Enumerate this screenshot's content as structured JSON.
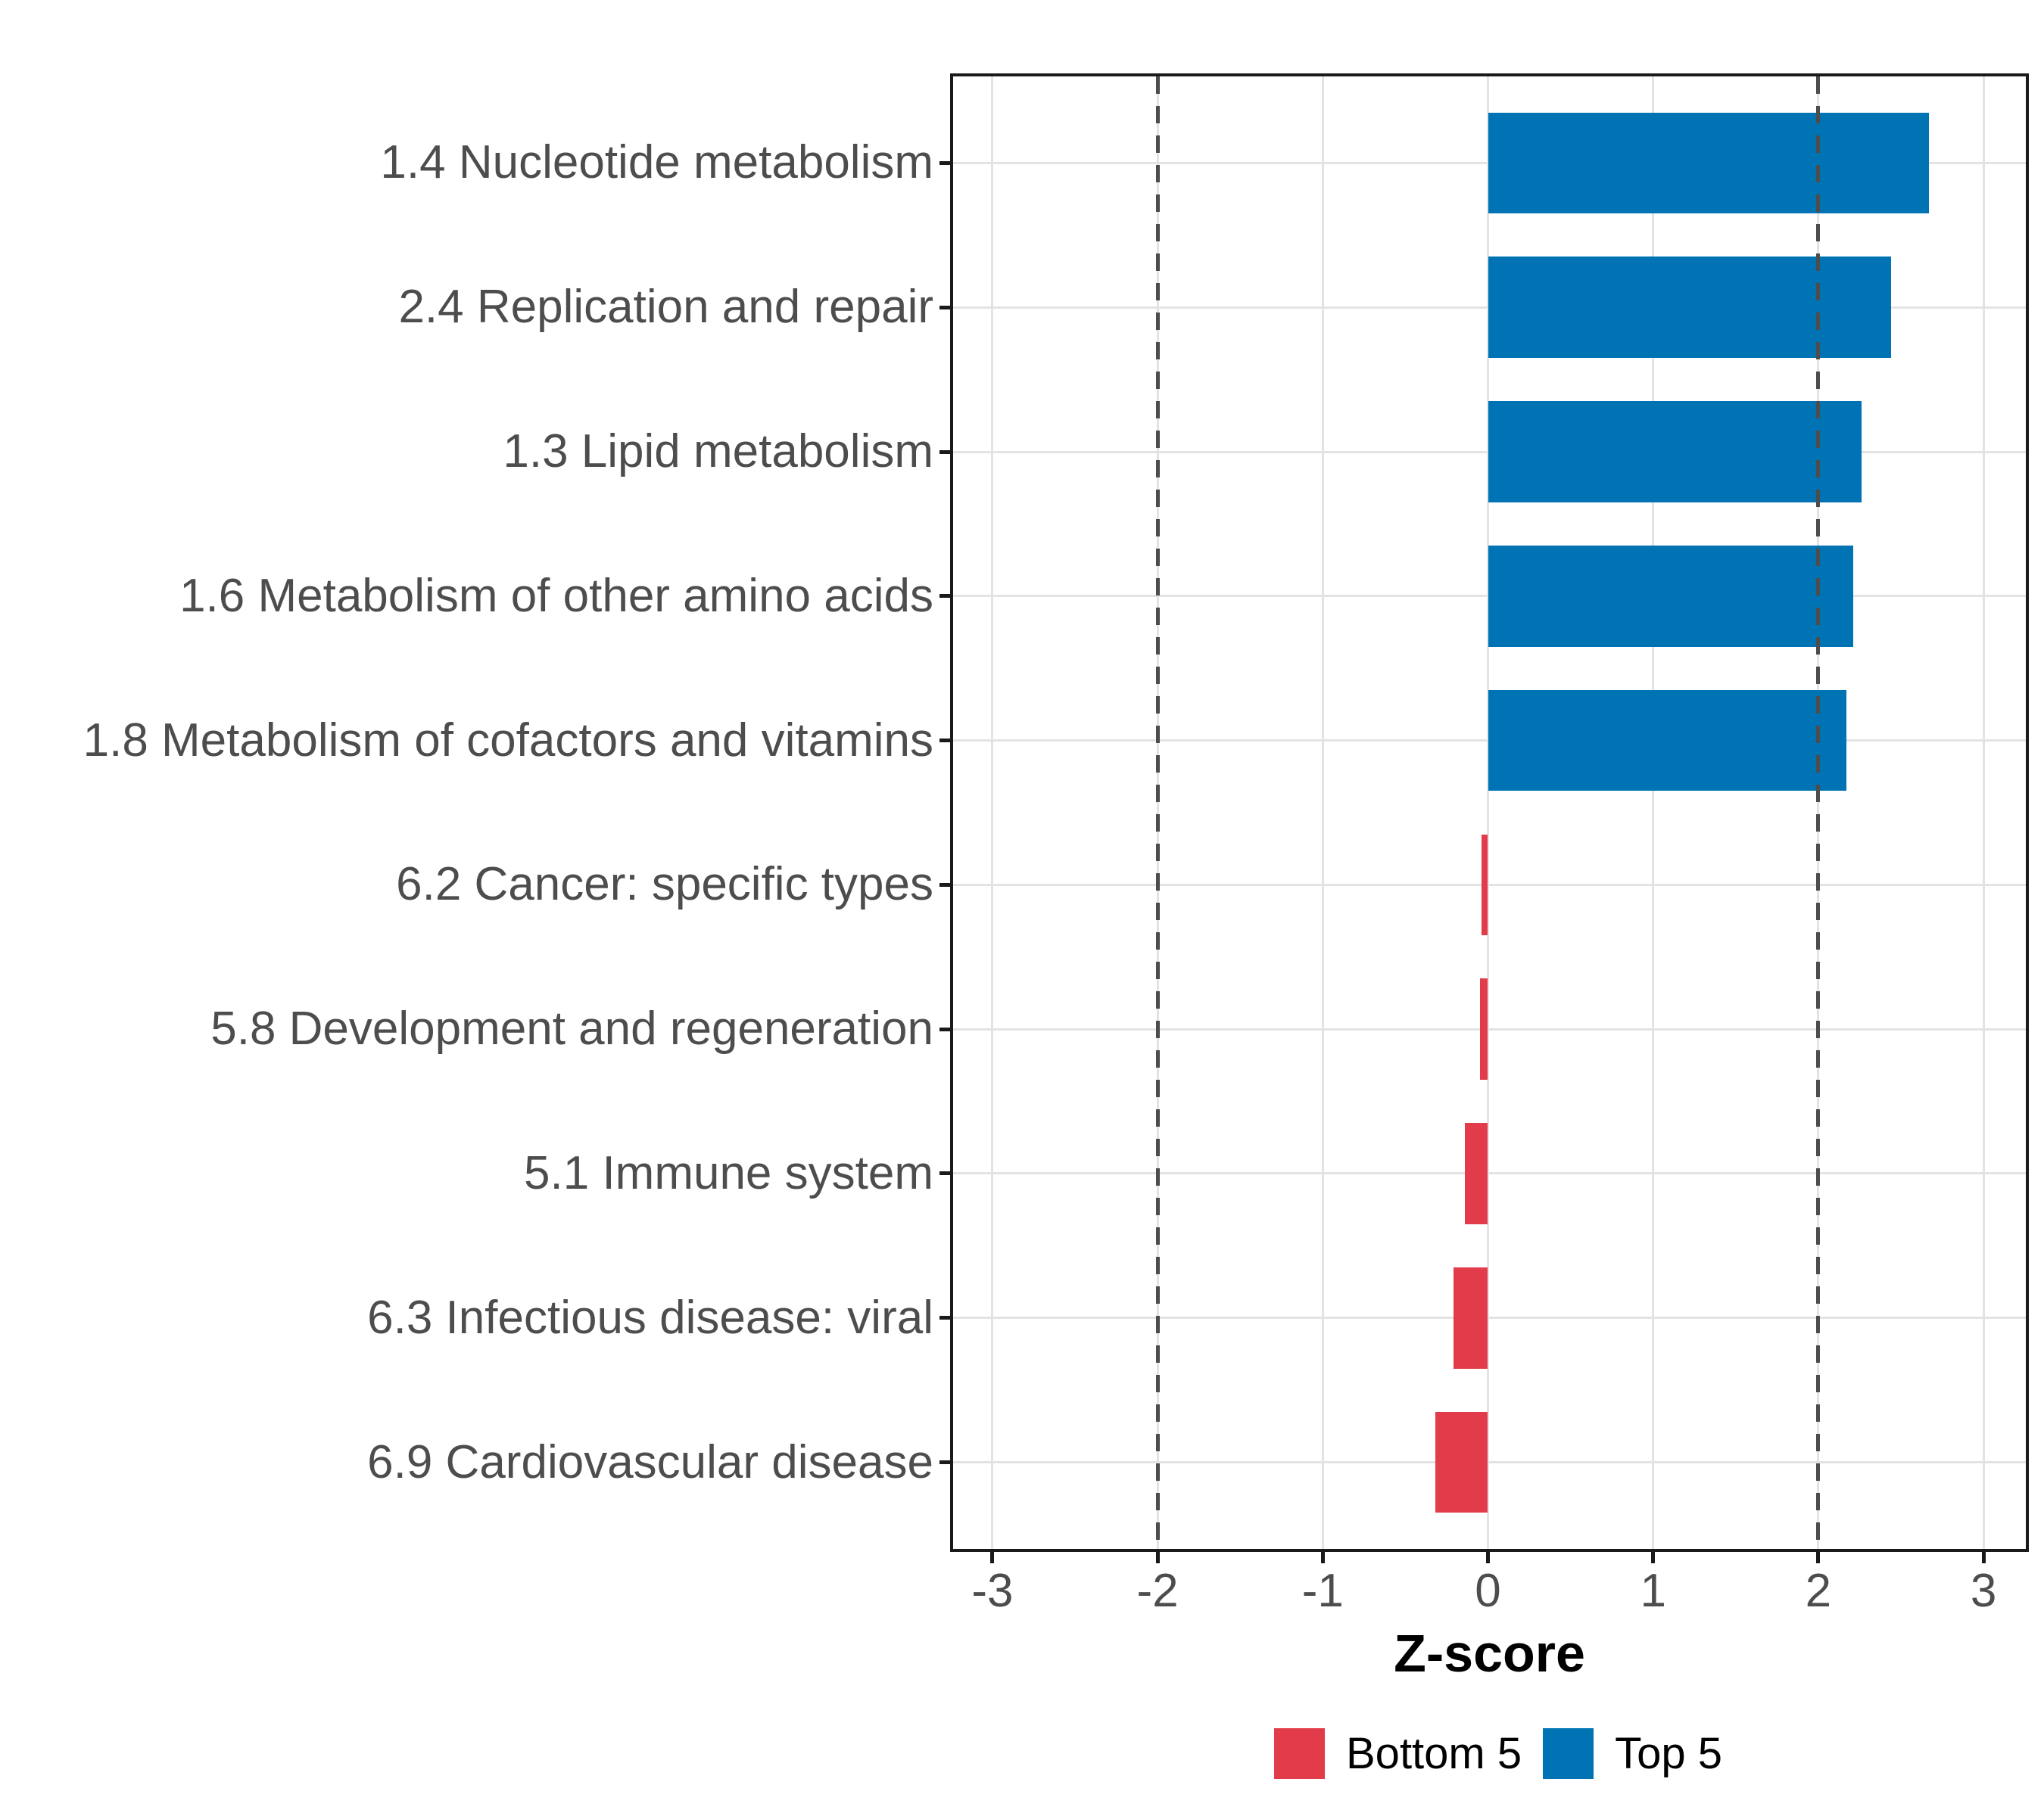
{
  "chart_data": {
    "type": "bar",
    "orientation": "horizontal",
    "xlabel": "Z-score",
    "categories": [
      "1.4 Nucleotide metabolism",
      "2.4 Replication and repair",
      "1.3 Lipid metabolism",
      "1.6 Metabolism of other amino acids",
      "1.8 Metabolism of cofactors and vitamins",
      "6.2 Cancer: specific types",
      "5.8 Development and regeneration",
      "5.1 Immune system",
      "6.3 Infectious disease: viral",
      "6.9 Cardiovascular disease"
    ],
    "values": [
      2.67,
      2.44,
      2.26,
      2.21,
      2.17,
      -0.04,
      -0.05,
      -0.14,
      -0.21,
      -0.32
    ],
    "groups": [
      "Top 5",
      "Top 5",
      "Top 5",
      "Top 5",
      "Top 5",
      "Bottom 5",
      "Bottom 5",
      "Bottom 5",
      "Bottom 5",
      "Bottom 5"
    ],
    "x_ticks": [
      -3,
      -2,
      -1,
      0,
      1,
      2,
      3
    ],
    "xlim": [
      -3.25,
      3.25
    ],
    "reference_lines": [
      -2,
      2
    ],
    "grid": true,
    "bar_width_fraction": 0.7,
    "legend": {
      "position": "bottom",
      "entries": [
        {
          "label": "Bottom 5",
          "color": "#E23B4A"
        },
        {
          "label": "Top 5",
          "color": "#0073B4"
        }
      ]
    },
    "colors": {
      "Top 5": "#0073B4",
      "Bottom 5": "#E23B4A",
      "gridline": "#E3E3E3",
      "reference_line": "#4D4D4D",
      "axis_text": "#4D4D4D",
      "panel_border": "#1a1a1a"
    }
  }
}
